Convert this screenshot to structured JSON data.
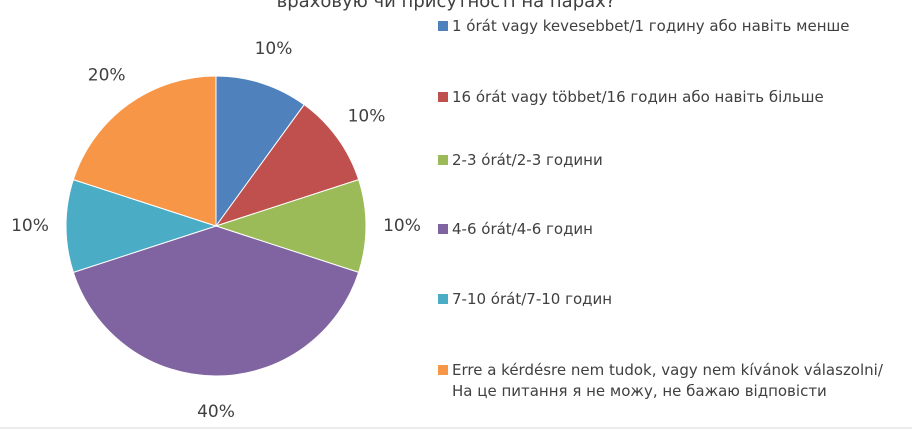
{
  "chart_data": {
    "type": "pie",
    "title": "враховую чи присутності на парах?",
    "categories": [
      "1 órát vagy kevesebbet/1 годину або навіть менше",
      "16 órát vagy többet/16 годин або навіть більше",
      "2-3 órát/2-3 години",
      "4-6 órát/4-6 годин",
      "7-10 órát/7-10 годин",
      "Erre a kérdésre nem tudok, vagy nem kívánok válaszolni/На це питання я не можу, не бажаю відповісти"
    ],
    "values": [
      10,
      10,
      10,
      40,
      10,
      20
    ],
    "value_labels": [
      "10%",
      "10%",
      "10%",
      "40%",
      "10%",
      "20%"
    ],
    "colors": [
      "#4f81bd",
      "#c0504d",
      "#9bbb59",
      "#8064a2",
      "#4bacc6",
      "#f79646"
    ],
    "legend": "right"
  }
}
